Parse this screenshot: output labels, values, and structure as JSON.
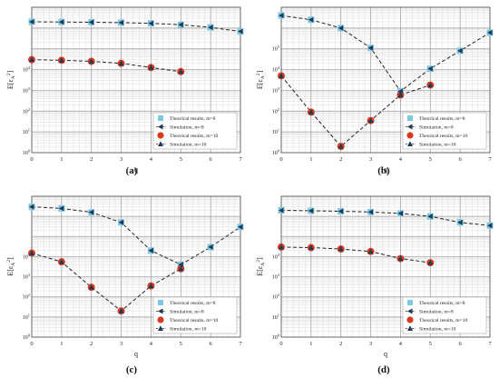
{
  "figure": {
    "colors": {
      "theory_m8": "#7ec8e3",
      "theory_m10": "#d93a1f",
      "sim_m8": "#1e3a56",
      "sim_m10": "#1e3a56",
      "dashed_line": "#222222",
      "major_grid": "#9a9a9a",
      "minor_grid": "#dcdcdc"
    },
    "legend_markers": {
      "theory_m8": "square",
      "sim_m8": "left-triangle",
      "theory_m10": "circle",
      "sim_m10": "triangle"
    }
  },
  "chart_data": [
    {
      "panel": "(a)",
      "type": "scatter",
      "xlabel": "q",
      "ylabel": "E[ε_A²]",
      "xlim": [
        0,
        7
      ],
      "ylim": [
        1,
        10000000
      ],
      "yscale": "log",
      "xticks": [
        "0",
        "1",
        "2",
        "3",
        "4",
        "5",
        "6",
        "7"
      ],
      "yticks": [
        "10^0",
        "10^1",
        "10^2",
        "10^3",
        "10^4"
      ],
      "legend_position": "bottom-right",
      "series": [
        {
          "name": "Theorical results, m=8",
          "x": [
            0,
            1,
            2,
            3,
            4,
            5,
            6,
            7
          ],
          "values": [
            2000000,
            1950000,
            1900000,
            1820000,
            1680000,
            1450000,
            1080000,
            680000
          ]
        },
        {
          "name": "Simulation, m=8",
          "x": [
            0,
            1,
            2,
            3,
            4,
            5,
            6,
            7
          ],
          "values": [
            2000000,
            1950000,
            1900000,
            1820000,
            1680000,
            1450000,
            1080000,
            680000
          ]
        },
        {
          "name": "Theorical results, m=10",
          "x": [
            0,
            1,
            2,
            3,
            4,
            5
          ],
          "values": [
            30000,
            28000,
            25000,
            20000,
            12500,
            8000
          ]
        },
        {
          "name": "Simulation, m=10",
          "x": [
            0,
            1,
            2,
            3,
            4,
            5
          ],
          "values": [
            30000,
            28000,
            25000,
            20000,
            12500,
            8000
          ]
        }
      ]
    },
    {
      "panel": "(b)",
      "type": "scatter",
      "xlabel": "q",
      "ylabel": "E[ε_A²]",
      "xlim": [
        0,
        7
      ],
      "ylim": [
        1,
        10000000
      ],
      "yscale": "log",
      "xticks": [
        "0",
        "1",
        "2",
        "3",
        "4",
        "5",
        "6",
        "7"
      ],
      "yticks": [
        "10^0",
        "10^1",
        "10^2",
        "10^3",
        "10^4",
        "10^5"
      ],
      "legend_position": "bottom-right",
      "series": [
        {
          "name": "Theorical results, m=8",
          "x": [
            0,
            1,
            2,
            3,
            4,
            5,
            6,
            7
          ],
          "values": [
            4000000,
            2500000,
            1000000,
            110000,
            900,
            11000,
            80000,
            600000
          ]
        },
        {
          "name": "Simulation, m=8",
          "x": [
            0,
            1,
            2,
            3,
            4,
            5,
            6,
            7
          ],
          "values": [
            4000000,
            2500000,
            1000000,
            110000,
            900,
            11000,
            80000,
            600000
          ]
        },
        {
          "name": "Theorical results, m=10",
          "x": [
            0,
            1,
            2,
            3,
            4,
            5
          ],
          "values": [
            5000,
            90,
            2,
            35,
            600,
            1800
          ]
        },
        {
          "name": "Simulation, m=10",
          "x": [
            0,
            1,
            2,
            3,
            4,
            5
          ],
          "values": [
            5000,
            90,
            2,
            35,
            600,
            1800
          ]
        }
      ]
    },
    {
      "panel": "(c)",
      "type": "scatter",
      "xlabel": "q",
      "ylabel": "E[ε_A²]",
      "xlim": [
        0,
        7
      ],
      "ylim": [
        1,
        10000000
      ],
      "yscale": "log",
      "xticks": [
        "0",
        "1",
        "2",
        "3",
        "4",
        "5",
        "6",
        "7"
      ],
      "yticks": [
        "10^0",
        "10^1",
        "10^2",
        "10^3",
        "10^4"
      ],
      "legend_position": "bottom-right",
      "series": [
        {
          "name": "Theorical results, m=8",
          "x": [
            0,
            1,
            2,
            3,
            4,
            5,
            6,
            7
          ],
          "values": [
            3000000,
            2500000,
            1600000,
            500000,
            20000,
            4000,
            30000,
            300000
          ]
        },
        {
          "name": "Simulation, m=8",
          "x": [
            0,
            1,
            2,
            3,
            4,
            5,
            6,
            7
          ],
          "values": [
            3000000,
            2500000,
            1600000,
            500000,
            20000,
            4000,
            30000,
            300000
          ]
        },
        {
          "name": "Theorical results, m=10",
          "x": [
            0,
            1,
            2,
            3,
            4,
            5
          ],
          "values": [
            15000,
            5500,
            300,
            20,
            350,
            2500
          ]
        },
        {
          "name": "Simulation, m=10",
          "x": [
            0,
            1,
            2,
            3,
            4,
            5
          ],
          "values": [
            15000,
            5500,
            300,
            20,
            350,
            2500
          ]
        }
      ]
    },
    {
      "panel": "(d)",
      "type": "scatter",
      "xlabel": "q",
      "ylabel": "E[ε_A²]",
      "xlim": [
        0,
        7
      ],
      "ylim": [
        1,
        10000000
      ],
      "yscale": "log",
      "xticks": [
        "0",
        "1",
        "2",
        "3",
        "4",
        "5",
        "6",
        "7"
      ],
      "yticks": [
        "10^0",
        "10^1",
        "10^2",
        "10^3",
        "10^4"
      ],
      "legend_position": "bottom-right",
      "series": [
        {
          "name": "Theorical results, m=8",
          "x": [
            0,
            1,
            2,
            3,
            4,
            5,
            6,
            7
          ],
          "values": [
            2000000,
            1900000,
            1800000,
            1650000,
            1400000,
            1000000,
            500000,
            350000
          ]
        },
        {
          "name": "Simulation, m=8",
          "x": [
            0,
            1,
            2,
            3,
            4,
            5,
            6,
            7
          ],
          "values": [
            2000000,
            1900000,
            1800000,
            1650000,
            1400000,
            1000000,
            500000,
            350000
          ]
        },
        {
          "name": "Theorical results, m=10",
          "x": [
            0,
            1,
            2,
            3,
            4,
            5
          ],
          "values": [
            30000,
            28000,
            24000,
            18000,
            8000,
            5000
          ]
        },
        {
          "name": "Simulation, m=10",
          "x": [
            0,
            1,
            2,
            3,
            4,
            5
          ],
          "values": [
            30000,
            28000,
            24000,
            18000,
            8000,
            5000
          ]
        }
      ]
    }
  ]
}
